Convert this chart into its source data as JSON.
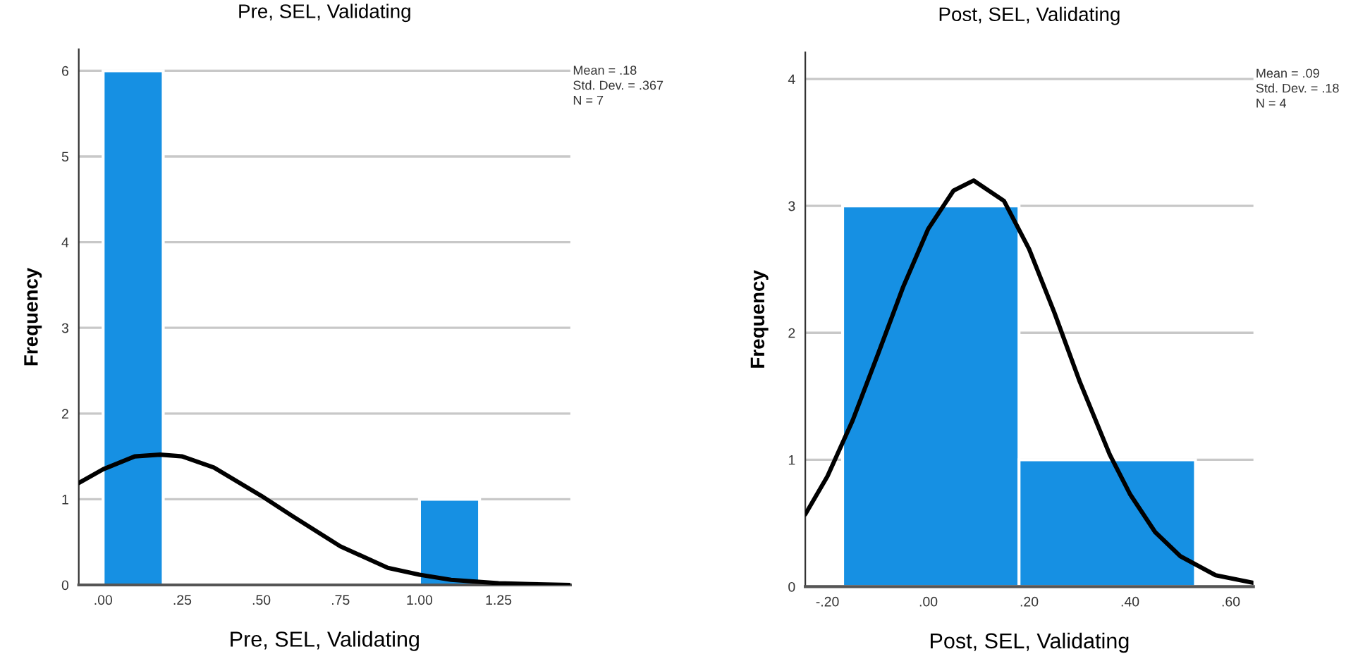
{
  "chart_data": [
    {
      "type": "histogram",
      "title": "Pre, SEL, Validating",
      "xlabel": "Pre, SEL, Validating",
      "ylabel": "Frequency",
      "annotations": [
        "Mean = .18",
        "Std. Dev. = .367",
        "N = 7"
      ],
      "series": [
        {
          "bins": [
            0,
            0.19,
            1.0,
            1.19
          ],
          "values": [
            6,
            0,
            1
          ],
          "color": "#1690e3"
        },
        {
          "type": "line",
          "x": [
            -0.077,
            0,
            0.1,
            0.18,
            0.25,
            0.35,
            0.5,
            0.6,
            0.75,
            0.9,
            1.0,
            1.1,
            1.25,
            1.35,
            1.477
          ],
          "values": [
            1.19,
            1.35,
            1.5,
            1.52,
            1.5,
            1.37,
            1.04,
            0.8,
            0.45,
            0.2,
            0.12,
            0.06,
            0.02,
            0.01,
            0.0
          ],
          "color": "#000000"
        }
      ],
      "xlim": [
        -0.077,
        1.477
      ],
      "ylim": [
        0,
        6.25
      ],
      "xticks": [
        {
          "value": 0,
          "label": ".00"
        },
        {
          "value": 0.25,
          "label": ".25"
        },
        {
          "value": 0.5,
          "label": ".50"
        },
        {
          "value": 0.75,
          "label": ".75"
        },
        {
          "value": 1.0,
          "label": "1.00"
        },
        {
          "value": 1.25,
          "label": "1.25"
        }
      ],
      "yticks": [
        0,
        1,
        2,
        3,
        4,
        5,
        6
      ],
      "grid": "y"
    },
    {
      "type": "histogram",
      "title": "Post, SEL, Validating",
      "xlabel": "Post, SEL, Validating",
      "ylabel": "Frequency",
      "annotations": [
        "Mean = .09",
        "Std. Dev. = .18",
        "N = 4"
      ],
      "series": [
        {
          "bins": [
            -0.17,
            0.18,
            0.53
          ],
          "values": [
            3,
            1
          ],
          "color": "#1690e3"
        },
        {
          "type": "line",
          "x": [
            -0.244,
            -0.2,
            -0.15,
            -0.1,
            -0.05,
            0,
            0.05,
            0.09,
            0.15,
            0.2,
            0.25,
            0.3,
            0.36,
            0.4,
            0.45,
            0.5,
            0.57,
            0.645
          ],
          "values": [
            0.57,
            0.87,
            1.31,
            1.83,
            2.36,
            2.82,
            3.12,
            3.2,
            3.04,
            2.66,
            2.16,
            1.62,
            1.04,
            0.73,
            0.43,
            0.24,
            0.09,
            0.03
          ],
          "color": "#000000"
        }
      ],
      "xlim": [
        -0.244,
        0.645
      ],
      "ylim": [
        0,
        4.21
      ],
      "xticks": [
        {
          "value": -0.2,
          "label": "-.20"
        },
        {
          "value": 0,
          "label": ".00"
        },
        {
          "value": 0.2,
          "label": ".20"
        },
        {
          "value": 0.4,
          "label": ".40"
        },
        {
          "value": 0.6,
          "label": ".60"
        }
      ],
      "yticks": [
        0,
        1,
        2,
        3,
        4
      ],
      "grid": "y"
    }
  ]
}
